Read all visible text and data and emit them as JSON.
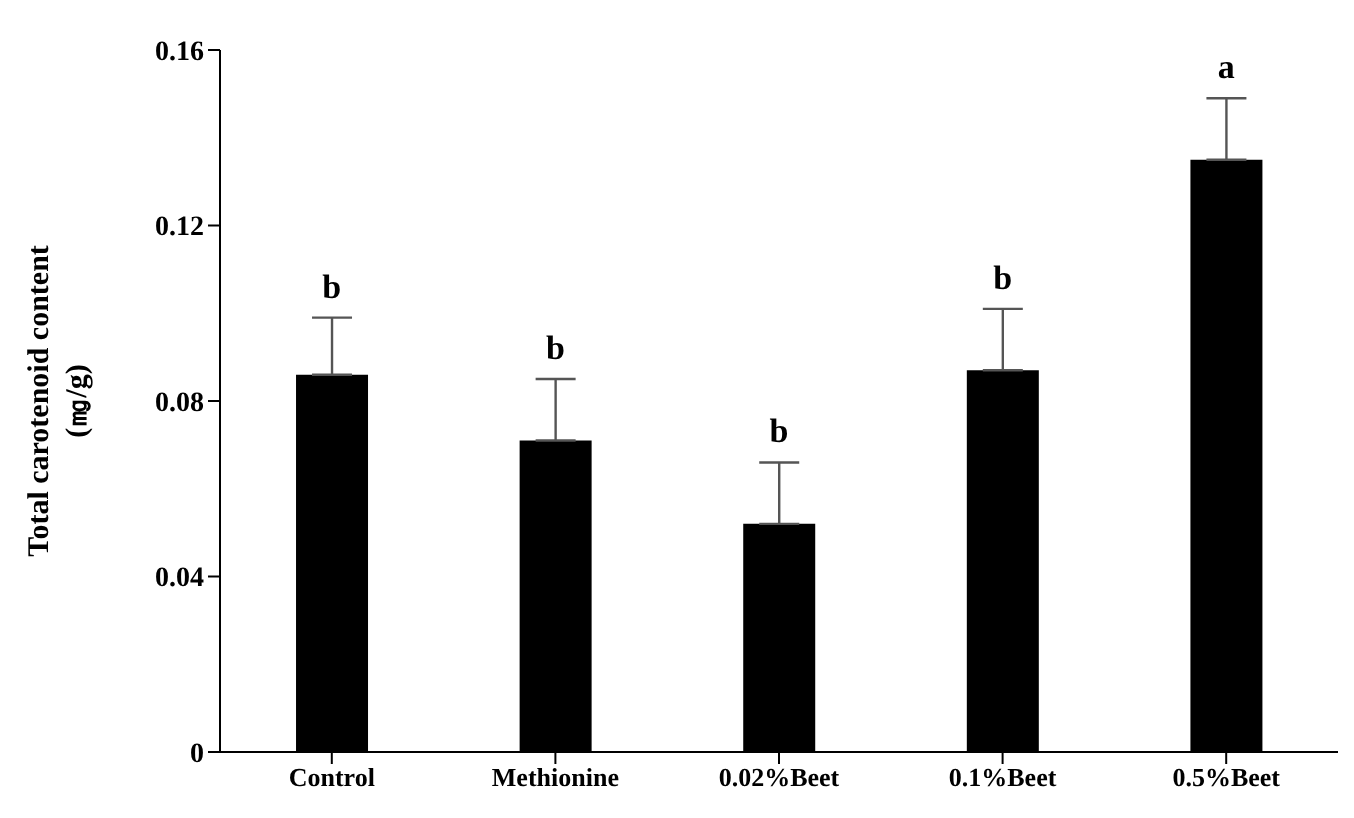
{
  "chart_data": {
    "type": "bar",
    "ylabel": "Total carotenoid content\n(㎎/g)",
    "categories": [
      "Control",
      "Methionine",
      "0.02%Beet",
      "0.1%Beet",
      "0.5%Beet"
    ],
    "values": [
      0.086,
      0.071,
      0.052,
      0.087,
      0.135
    ],
    "errors": [
      [
        0.086,
        0.099
      ],
      [
        0.071,
        0.085
      ],
      [
        0.052,
        0.066
      ],
      [
        0.087,
        0.101
      ],
      [
        0.135,
        0.149
      ]
    ],
    "color": "#000000",
    "ylim": [
      0,
      0.16
    ],
    "yticks": [
      0,
      0.04,
      0.08,
      0.12,
      0.16
    ],
    "annotations": [
      {
        "text": "b",
        "x": "Control",
        "y": 0.099
      },
      {
        "text": "b",
        "x": "Methionine",
        "y": 0.085
      },
      {
        "text": "b",
        "x": "0.02%Beet",
        "y": 0.066
      },
      {
        "text": "b",
        "x": "0.1%Beet",
        "y": 0.101
      },
      {
        "text": "a",
        "x": "0.5%Beet",
        "y": 0.149
      }
    ]
  }
}
